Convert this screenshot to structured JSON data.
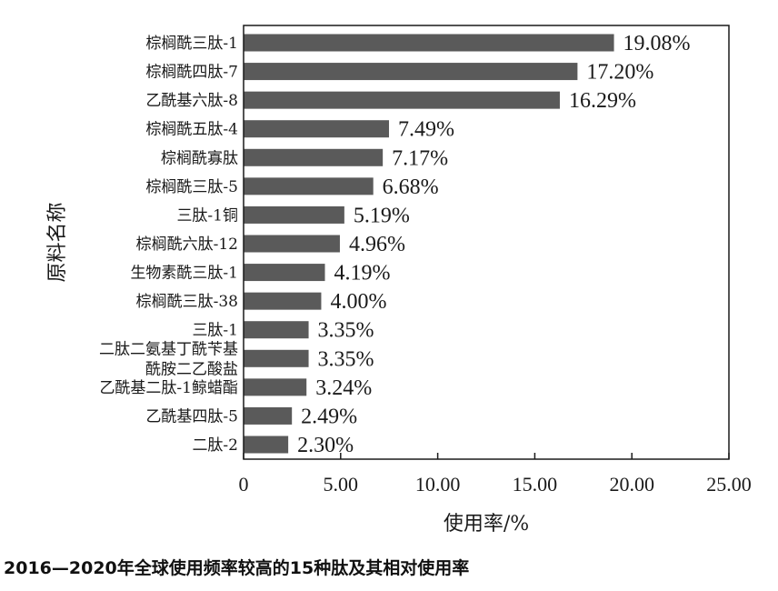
{
  "chart_data": {
    "type": "bar",
    "orientation": "horizontal",
    "categories": [
      "棕榈酰三肽-1",
      "棕榈酰四肽-7",
      "乙酰基六肽-8",
      "棕榈酰五肽-4",
      "棕榈酰寡肽",
      "棕榈酰三肽-5",
      "三肽-1铜",
      "棕榈酰六肽-12",
      "生物素酰三肽-1",
      "棕榈酰三肽-38",
      "三肽-1",
      "二肽二氨基丁酰苄基酰胺二乙酸盐",
      "乙酰基二肽-1鲸蜡酯",
      "乙酰基四肽-5",
      "二肽-2"
    ],
    "category_label_lines": [
      [
        "棕榈酰三肽-1"
      ],
      [
        "棕榈酰四肽-7"
      ],
      [
        "乙酰基六肽-8"
      ],
      [
        "棕榈酰五肽-4"
      ],
      [
        "棕榈酰寡肽"
      ],
      [
        "棕榈酰三肽-5"
      ],
      [
        "三肽-1铜"
      ],
      [
        "棕榈酰六肽-12"
      ],
      [
        "生物素酰三肽-1"
      ],
      [
        "棕榈酰三肽-38"
      ],
      [
        "三肽-1"
      ],
      [
        "二肽二氨基丁酰苄基",
        "酰胺二乙酸盐"
      ],
      [
        "乙酰基二肽-1鲸蜡酯"
      ],
      [
        "乙酰基四肽-5"
      ],
      [
        "二肽-2"
      ]
    ],
    "values": [
      19.08,
      17.2,
      16.29,
      7.49,
      7.17,
      6.68,
      5.19,
      4.96,
      4.19,
      4.0,
      3.35,
      3.35,
      3.24,
      2.49,
      2.3
    ],
    "value_labels": [
      "19.08%",
      "17.20%",
      "16.29%",
      "7.49%",
      "7.17%",
      "6.68%",
      "5.19%",
      "4.96%",
      "4.19%",
      "4.00%",
      "3.35%",
      "3.35%",
      "3.24%",
      "2.49%",
      "2.30%"
    ],
    "xlim": [
      0,
      25
    ],
    "x_ticks": [
      0,
      5,
      10,
      15,
      20,
      25
    ],
    "x_tick_labels": [
      "0",
      "5.00",
      "10.00",
      "15.00",
      "20.00",
      "25.00"
    ],
    "xlabel": "使用率/%",
    "ylabel": "原料名称",
    "grid": false,
    "bar_color": "#5a5a5a"
  },
  "caption": "2016—2020年全球使用频率较高的15种肽及其相对使用率"
}
